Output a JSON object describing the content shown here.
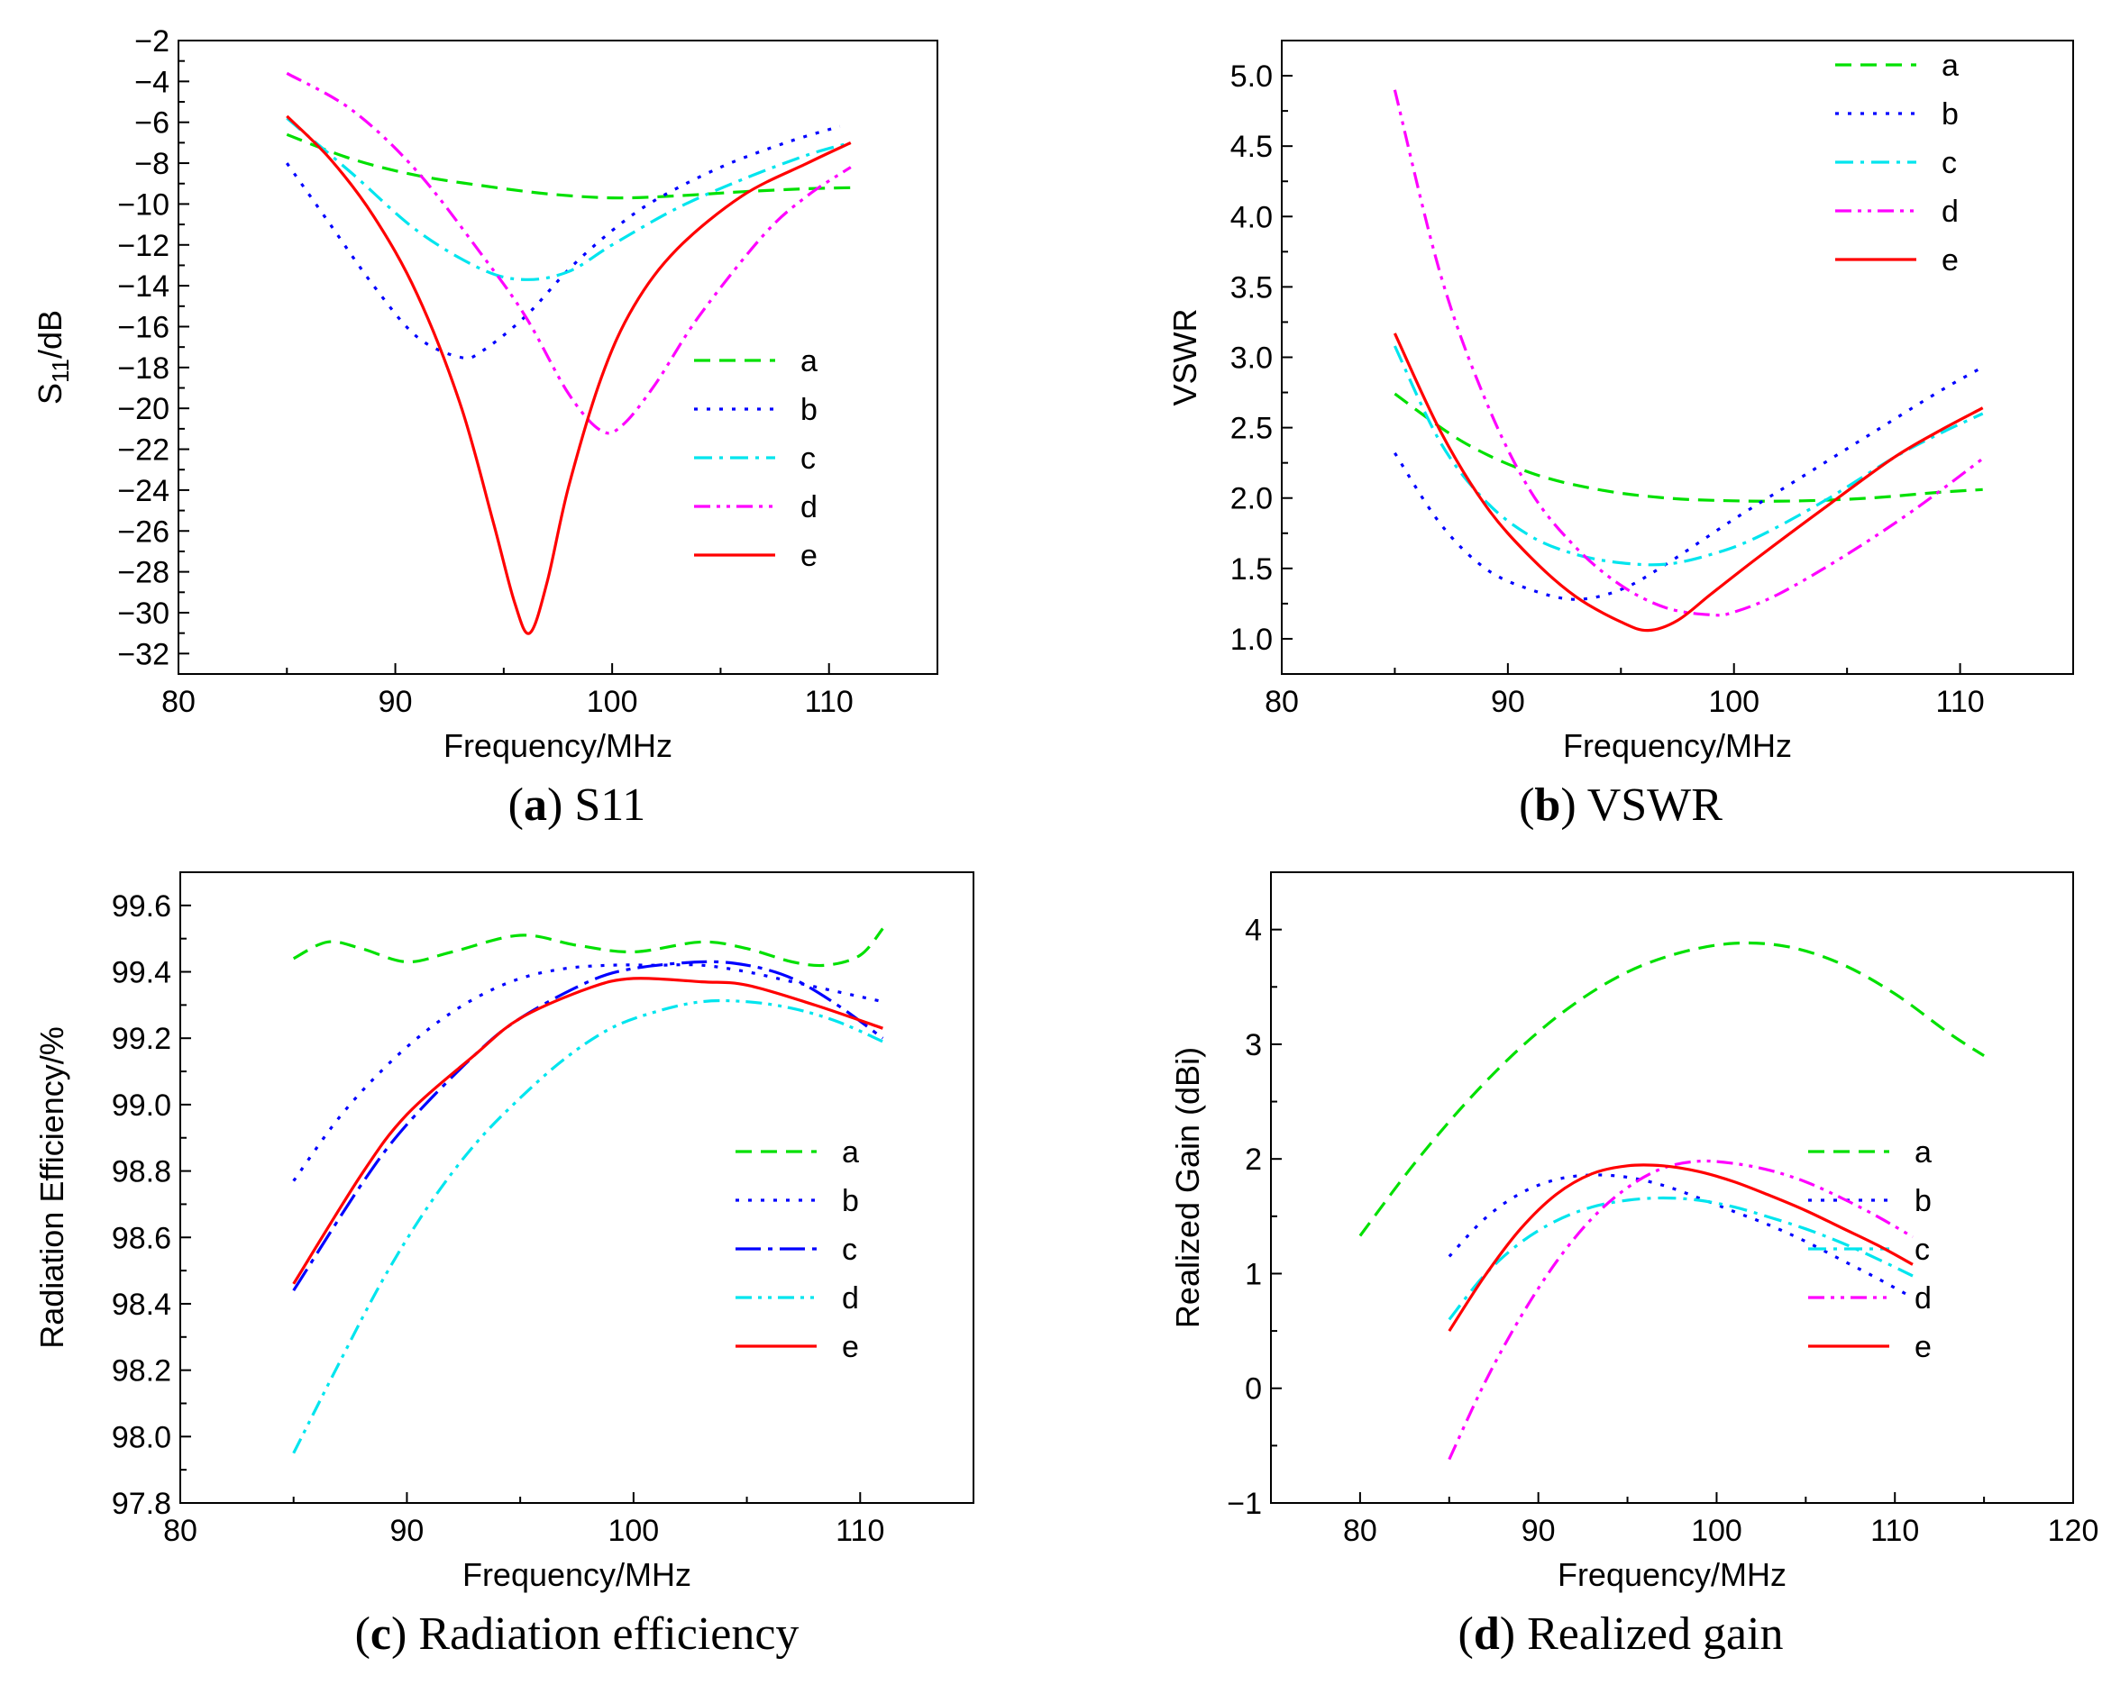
{
  "chart_data": [
    {
      "type": "line",
      "caption": {
        "letter": "a",
        "text": "S11"
      },
      "xlabel": "Frequency/MHz",
      "ylabel": "S11/dB",
      "xlim": [
        80,
        115
      ],
      "ylim": [
        -33,
        -2
      ],
      "xticks": [
        80,
        90,
        100,
        110
      ],
      "yticks": [
        -32,
        -30,
        -28,
        -26,
        -24,
        -22,
        -20,
        -18,
        -16,
        -14,
        -12,
        -10,
        -8,
        -6,
        -4,
        -2
      ],
      "grid": false,
      "legend": "right-middle",
      "series": [
        {
          "name": "a",
          "color": "#00e000",
          "dash": "dash",
          "x": [
            85,
            88,
            91,
            94,
            97,
            100,
            103,
            106,
            109,
            111
          ],
          "y": [
            -6.6,
            -7.8,
            -8.6,
            -9.1,
            -9.5,
            -9.7,
            -9.6,
            -9.4,
            -9.25,
            -9.2
          ]
        },
        {
          "name": "b",
          "color": "#0000ff",
          "dash": "dot",
          "x": [
            85,
            87,
            89,
            91,
            93,
            94,
            96,
            98,
            100,
            102,
            105,
            108,
            110.5
          ],
          "y": [
            -8,
            -11,
            -14,
            -16.5,
            -17.5,
            -17.2,
            -15.5,
            -13.2,
            -11.3,
            -9.8,
            -8.2,
            -7,
            -6.2
          ]
        },
        {
          "name": "c",
          "color": "#00e5ee",
          "dash": "dashdot",
          "x": [
            85,
            88,
            91,
            94,
            96,
            98,
            100,
            103,
            106,
            109,
            111
          ],
          "y": [
            -5.8,
            -8.5,
            -11.3,
            -13.2,
            -13.7,
            -13.3,
            -12,
            -10.2,
            -8.8,
            -7.6,
            -7
          ]
        },
        {
          "name": "d",
          "color": "#ff00ff",
          "dash": "dashdotdot",
          "x": [
            85,
            88,
            91,
            94,
            96,
            98,
            99.5,
            100.5,
            102,
            104,
            107,
            109,
            111
          ],
          "y": [
            -3.6,
            -5.4,
            -8.4,
            -12.5,
            -15.5,
            -19.3,
            -21.1,
            -20.8,
            -18.8,
            -15.5,
            -11.5,
            -9.6,
            -8.2
          ]
        },
        {
          "name": "e",
          "color": "#ff0000",
          "dash": "solid",
          "x": [
            85,
            87,
            89,
            91,
            93,
            94.5,
            95.5,
            96.2,
            97,
            98,
            99.5,
            101,
            103,
            106,
            109,
            111
          ],
          "y": [
            -5.7,
            -7.8,
            -10.6,
            -14.4,
            -19.8,
            -25.5,
            -29.5,
            -31,
            -28.5,
            -23.8,
            -18.5,
            -15,
            -12.2,
            -9.6,
            -8,
            -7
          ]
        }
      ]
    },
    {
      "type": "line",
      "caption": {
        "letter": "b",
        "text": "VSWR"
      },
      "xlabel": "Frequency/MHz",
      "ylabel": "VSWR",
      "xlim": [
        80,
        115
      ],
      "ylim": [
        0.75,
        5.25
      ],
      "xticks": [
        80,
        90,
        100,
        110
      ],
      "yticks": [
        1.0,
        1.5,
        2.0,
        2.5,
        3.0,
        3.5,
        4.0,
        4.5,
        5.0
      ],
      "grid": false,
      "legend": "top-right",
      "series": [
        {
          "name": "a",
          "color": "#00e000",
          "dash": "dash",
          "x": [
            85,
            88,
            91,
            94,
            97,
            100,
            103,
            106,
            109,
            111
          ],
          "y": [
            2.74,
            2.4,
            2.18,
            2.06,
            2.0,
            1.98,
            1.98,
            2.0,
            2.04,
            2.06
          ]
        },
        {
          "name": "b",
          "color": "#0000ff",
          "dash": "dot",
          "x": [
            85,
            87,
            89,
            91,
            93,
            95,
            97,
            100,
            103,
            106,
            109,
            111
          ],
          "y": [
            2.32,
            1.82,
            1.5,
            1.35,
            1.28,
            1.35,
            1.53,
            1.85,
            2.15,
            2.45,
            2.75,
            2.93
          ]
        },
        {
          "name": "c",
          "color": "#00e5ee",
          "dash": "dashdot",
          "x": [
            85,
            87,
            89,
            91,
            93,
            95,
            97,
            99,
            101,
            104,
            107,
            109,
            111
          ],
          "y": [
            3.08,
            2.4,
            1.98,
            1.73,
            1.6,
            1.54,
            1.53,
            1.6,
            1.72,
            1.98,
            2.28,
            2.45,
            2.6
          ]
        },
        {
          "name": "d",
          "color": "#ff00ff",
          "dash": "dashdotdot",
          "x": [
            85,
            87,
            89,
            91,
            93,
            95,
            97,
            99,
            100,
            102,
            105,
            108,
            111
          ],
          "y": [
            4.9,
            3.6,
            2.7,
            2.05,
            1.65,
            1.38,
            1.22,
            1.17,
            1.19,
            1.32,
            1.6,
            1.92,
            2.28
          ]
        },
        {
          "name": "e",
          "color": "#ff0000",
          "dash": "solid",
          "x": [
            85,
            87,
            89,
            91,
            93,
            95,
            96.2,
            97.5,
            99,
            101,
            104,
            107,
            109,
            111
          ],
          "y": [
            3.17,
            2.48,
            1.95,
            1.58,
            1.3,
            1.12,
            1.06,
            1.13,
            1.32,
            1.57,
            1.93,
            2.28,
            2.47,
            2.64
          ]
        }
      ]
    },
    {
      "type": "line",
      "caption": {
        "letter": "c",
        "text": "Radiation efficiency"
      },
      "xlabel": "Frequency/MHz",
      "ylabel": "Radiation Efficiency/%",
      "xlim": [
        80,
        115
      ],
      "ylim": [
        97.8,
        99.7
      ],
      "xticks": [
        80,
        90,
        100,
        110
      ],
      "yticks": [
        97.8,
        98.0,
        98.2,
        98.4,
        98.6,
        98.8,
        99.0,
        99.2,
        99.4,
        99.6
      ],
      "grid": false,
      "legend": "right-middle",
      "series": [
        {
          "name": "a",
          "color": "#00e000",
          "dash": "dash",
          "x": [
            85,
            86.5,
            88,
            90,
            92,
            95,
            97.5,
            100,
            103,
            105,
            107,
            108.5,
            110,
            111
          ],
          "y": [
            99.44,
            99.49,
            99.47,
            99.43,
            99.46,
            99.51,
            99.48,
            99.46,
            99.49,
            99.47,
            99.43,
            99.42,
            99.45,
            99.53
          ]
        },
        {
          "name": "b",
          "color": "#0000ff",
          "dash": "dot",
          "x": [
            85,
            87,
            89,
            91,
            93,
            95,
            97,
            99,
            101,
            103,
            105,
            107,
            109,
            111
          ],
          "y": [
            98.77,
            98.96,
            99.11,
            99.23,
            99.32,
            99.38,
            99.41,
            99.42,
            99.42,
            99.42,
            99.4,
            99.37,
            99.34,
            99.31
          ]
        },
        {
          "name": "c",
          "color": "#0000ff",
          "dash": "longdashdot",
          "x": [
            85,
            88,
            90,
            93,
            95,
            98,
            100,
            103,
            105,
            107,
            109,
            111
          ],
          "y": [
            98.44,
            98.76,
            98.94,
            99.15,
            99.26,
            99.37,
            99.41,
            99.43,
            99.42,
            99.38,
            99.3,
            99.2
          ]
        },
        {
          "name": "d",
          "color": "#00e5ee",
          "dash": "dashdotdot",
          "x": [
            85,
            87,
            89,
            91,
            93,
            95,
            97,
            99,
            101,
            103,
            105,
            107,
            109,
            111
          ],
          "y": [
            97.95,
            98.22,
            98.48,
            98.7,
            98.88,
            99.02,
            99.14,
            99.23,
            99.28,
            99.31,
            99.31,
            99.29,
            99.25,
            99.19
          ]
        },
        {
          "name": "e",
          "color": "#ff0000",
          "dash": "solid",
          "x": [
            85,
            88,
            90,
            93,
            95,
            98,
            100,
            103,
            105,
            108,
            111
          ],
          "y": [
            98.46,
            98.79,
            98.97,
            99.15,
            99.26,
            99.35,
            99.38,
            99.37,
            99.36,
            99.3,
            99.23
          ]
        }
      ]
    },
    {
      "type": "line",
      "caption": {
        "letter": "d",
        "text": "Realized gain"
      },
      "xlabel": "Frequency/MHz",
      "ylabel": "Realized Gain (dBi)",
      "xlim": [
        75,
        120
      ],
      "ylim": [
        -1,
        4.5
      ],
      "xticks": [
        80,
        90,
        100,
        110,
        120
      ],
      "yticks": [
        -1,
        0,
        1,
        2,
        3,
        4
      ],
      "grid": false,
      "legend": "right-middle",
      "series": [
        {
          "name": "a",
          "color": "#00e000",
          "dash": "dash",
          "x": [
            80,
            83,
            86,
            89,
            92,
            95,
            98,
            101,
            104,
            107,
            110,
            113,
            115
          ],
          "y": [
            1.33,
            1.95,
            2.5,
            2.97,
            3.35,
            3.63,
            3.8,
            3.88,
            3.85,
            3.7,
            3.44,
            3.1,
            2.9
          ]
        },
        {
          "name": "b",
          "color": "#0000ff",
          "dash": "dot",
          "x": [
            85,
            87,
            89,
            91,
            93,
            95,
            97,
            99,
            101,
            103,
            105,
            107,
            109,
            111
          ],
          "y": [
            1.15,
            1.48,
            1.7,
            1.82,
            1.86,
            1.84,
            1.77,
            1.66,
            1.54,
            1.42,
            1.28,
            1.12,
            0.96,
            0.79
          ]
        },
        {
          "name": "c",
          "color": "#00e5ee",
          "dash": "dashdot",
          "x": [
            85,
            87,
            89,
            91,
            93,
            95,
            97,
            99,
            101,
            103,
            105,
            107,
            109,
            111
          ],
          "y": [
            0.6,
            0.99,
            1.27,
            1.46,
            1.58,
            1.64,
            1.66,
            1.64,
            1.58,
            1.49,
            1.39,
            1.27,
            1.13,
            0.98
          ]
        },
        {
          "name": "d",
          "color": "#ff00ff",
          "dash": "dashdotdot",
          "x": [
            85,
            87,
            89,
            91,
            93,
            95,
            97,
            99,
            101,
            103,
            105,
            107,
            109,
            111
          ],
          "y": [
            -0.62,
            0.05,
            0.62,
            1.1,
            1.48,
            1.75,
            1.92,
            1.98,
            1.96,
            1.9,
            1.8,
            1.66,
            1.5,
            1.32
          ]
        },
        {
          "name": "e",
          "color": "#ff0000",
          "dash": "solid",
          "x": [
            85,
            87,
            89,
            91,
            93,
            95,
            97,
            99,
            101,
            103,
            105,
            107,
            109,
            111
          ],
          "y": [
            0.5,
            0.98,
            1.39,
            1.69,
            1.87,
            1.94,
            1.94,
            1.89,
            1.8,
            1.68,
            1.55,
            1.4,
            1.25,
            1.08
          ]
        }
      ]
    }
  ]
}
